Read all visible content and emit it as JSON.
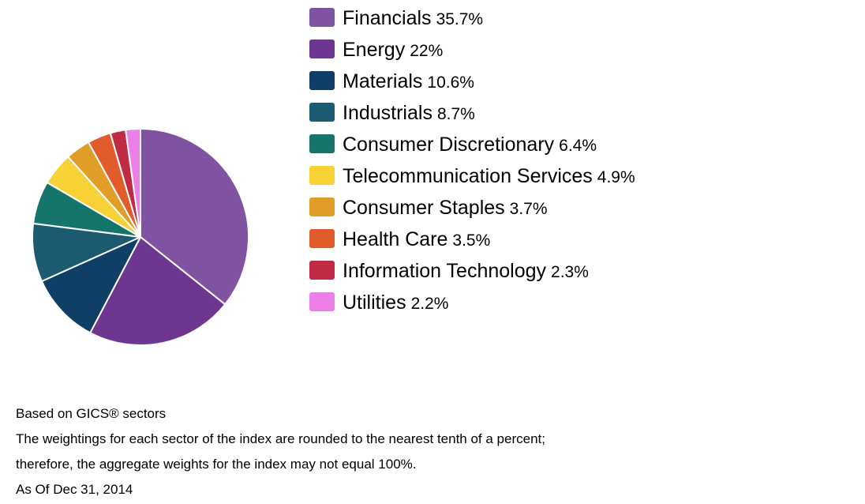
{
  "chart_data": {
    "type": "pie",
    "categories": [
      "Financials",
      "Energy",
      "Materials",
      "Industrials",
      "Consumer Discretionary",
      "Telecommunication Services",
      "Consumer Staples",
      "Health Care",
      "Information Technology",
      "Utilities"
    ],
    "values": [
      35.7,
      22,
      10.6,
      8.7,
      6.4,
      4.9,
      3.7,
      3.5,
      2.3,
      2.2
    ],
    "value_labels": [
      "35.7%",
      "22%",
      "10.6%",
      "8.7%",
      "6.4%",
      "4.9%",
      "3.7%",
      "3.5%",
      "2.3%",
      "2.2%"
    ],
    "colors": [
      "#7f53a1",
      "#6d3791",
      "#0f3e66",
      "#1b5a6f",
      "#15756a",
      "#f7d135",
      "#e09e28",
      "#e25b2a",
      "#c02a44",
      "#ec80e8"
    ],
    "start_angle": "12 o'clock",
    "direction": "clockwise",
    "legend_position": "right"
  },
  "notes": [
    "Based on GICS® sectors",
    "The weightings for each sector of the index are rounded to the nearest tenth of a percent;",
    "therefore, the aggregate weights for the index may not equal 100%.",
    "As Of Dec 31, 2014"
  ]
}
